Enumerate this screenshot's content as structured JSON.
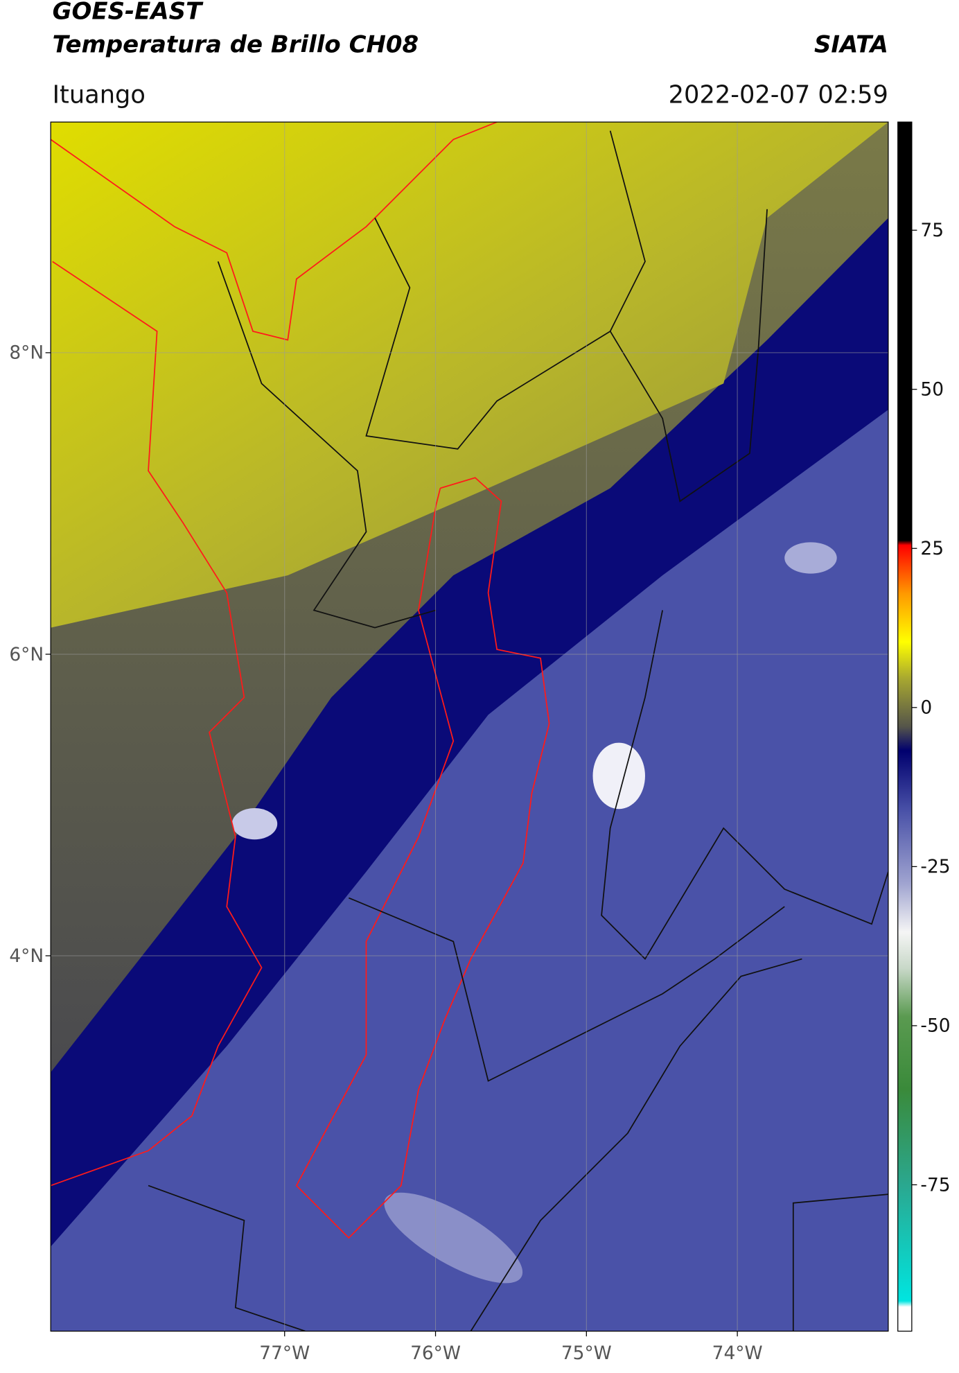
{
  "header": {
    "satellite": "GOES-EAST",
    "product": "Temperatura de Brillo CH08",
    "organization": "SIATA",
    "region": "Ituango",
    "datetime": "2022-02-07 02:59"
  },
  "map": {
    "xlim": [
      -78.55,
      -73.0
    ],
    "ylim": [
      1.51,
      9.53
    ],
    "xticks": [
      {
        "value": -77,
        "label": "77°W"
      },
      {
        "value": -76,
        "label": "76°W"
      },
      {
        "value": -75,
        "label": "75°W"
      },
      {
        "value": -74,
        "label": "74°W"
      }
    ],
    "yticks": [
      {
        "value": 8,
        "label": "8°N"
      },
      {
        "value": 6,
        "label": "6°N"
      },
      {
        "value": 4,
        "label": "4°N"
      }
    ],
    "grid": true
  },
  "colorbar": {
    "ylim": [
      -98,
      92
    ],
    "yticks": [
      75,
      50,
      25,
      0,
      -25,
      -50,
      -75
    ]
  }
}
